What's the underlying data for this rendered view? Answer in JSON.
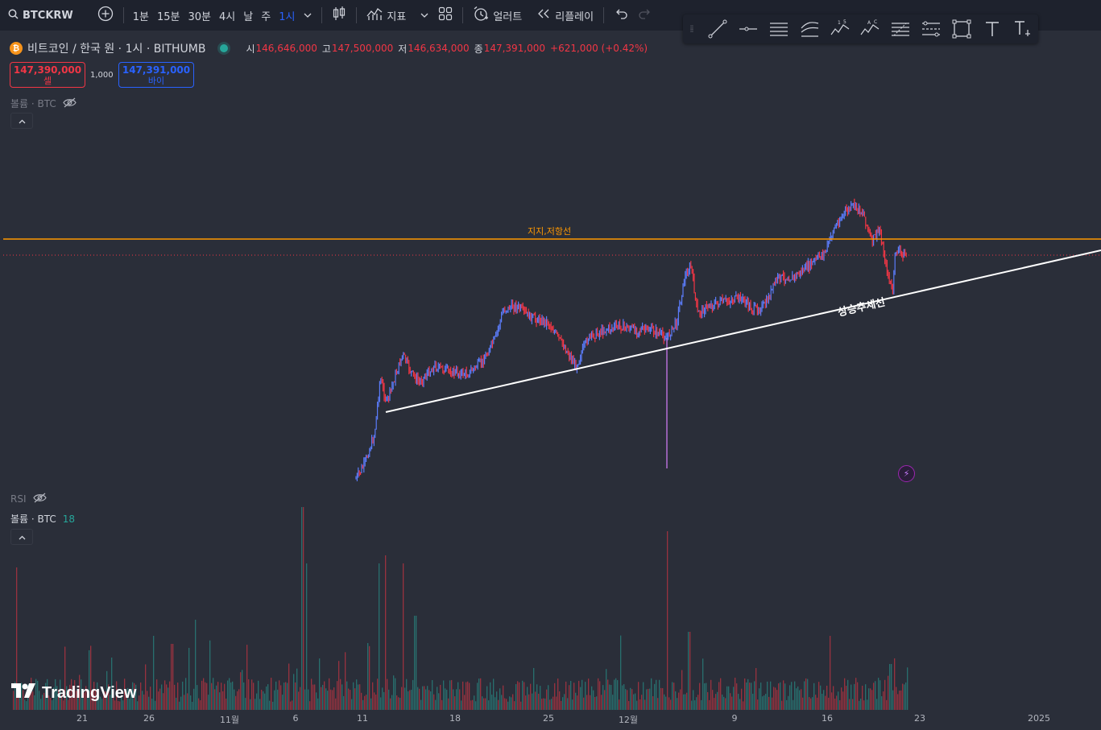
{
  "toolbar": {
    "symbol": "BTCKRW",
    "timeframes": [
      "1분",
      "15분",
      "30분",
      "4시",
      "날",
      "주",
      "1시"
    ],
    "active_timeframe": "1시",
    "indicators_label": "지표",
    "alert_label": "얼러트",
    "replay_label": "리플레이"
  },
  "drawing_tools": [
    "trend-line-icon",
    "horizontal-ray-icon",
    "parallel-channel-icon",
    "pitchfork-icon",
    "elliott-wave-icon",
    "abcd-pattern-icon",
    "fib-retracement-icon",
    "gann-box-icon",
    "rectangle-icon",
    "text-icon",
    "anchored-text-icon"
  ],
  "legend": {
    "title": "비트코인 / 한국 원 · 1시 · BITHUMB",
    "open_label": "시",
    "open": "146,646,000",
    "high_label": "고",
    "high": "147,500,000",
    "low_label": "저",
    "low": "146,634,000",
    "close_label": "종",
    "close": "147,391,000",
    "change": "+621,000 (+0.42%)"
  },
  "trade": {
    "sell_price": "147,390,000",
    "sell_label": "셀",
    "spread": "1,000",
    "buy_price": "147,391,000",
    "buy_label": "바이"
  },
  "panes": {
    "volume_overlay_label": "볼륨 · BTC",
    "rsi_label": "RSI",
    "volume_label": "볼륨 · BTC",
    "volume_value": "18"
  },
  "annotations": {
    "support_resistance": "지지,저항선",
    "uptrend": "상승추세선"
  },
  "time_axis": [
    {
      "label": "21"
    },
    {
      "label": "26"
    },
    {
      "label": "11월"
    },
    {
      "label": "6"
    },
    {
      "label": "11"
    },
    {
      "label": "18"
    },
    {
      "label": "25"
    },
    {
      "label": "12월"
    },
    {
      "label": "9"
    },
    {
      "label": "16"
    },
    {
      "label": "23"
    },
    {
      "label": "2025"
    }
  ],
  "brand": "TradingView",
  "colors": {
    "background": "#2a2e39",
    "up": "#26a69a",
    "down": "#f23645",
    "accent": "#2962ff",
    "support_line": "#ff9800",
    "trend_line": "#ffffff"
  }
}
